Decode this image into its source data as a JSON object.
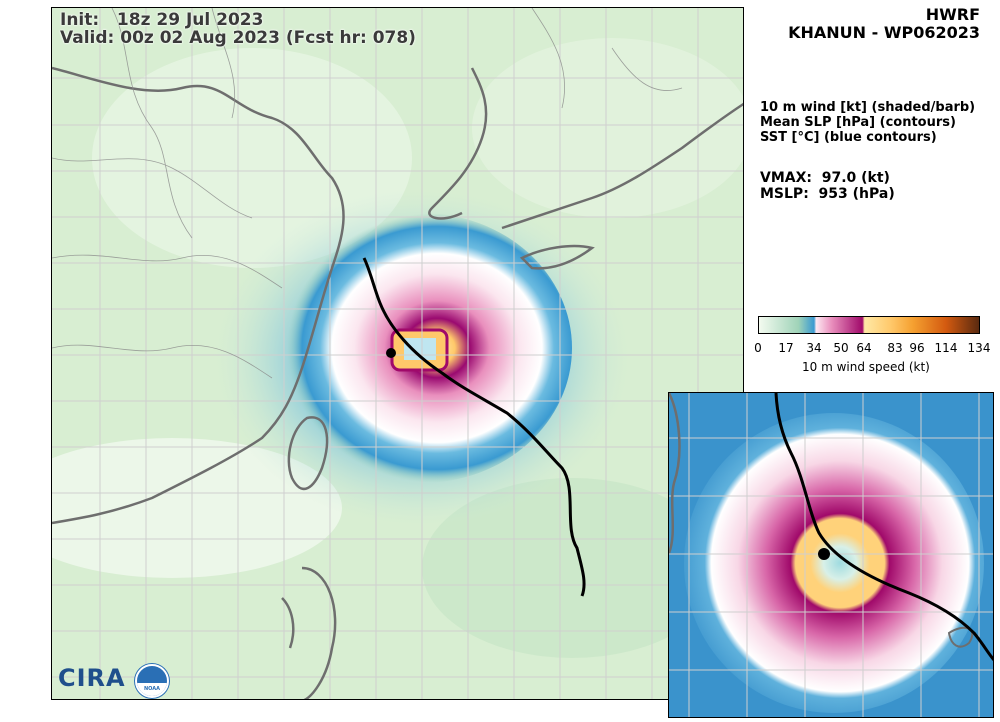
{
  "header": {
    "model": "HWRF",
    "storm": "KHANUN - WP062023",
    "init": "Init:   18z 29 Jul 2023",
    "valid": "Valid: 00z 02 Aug 2023 (Fcst hr: 078)"
  },
  "fields": [
    "10 m wind [kt] (shaded/barb)",
    "Mean SLP [hPa] (contours)",
    "SST [°C] (blue contours)"
  ],
  "intensity": {
    "vmax": "VMAX:  97.0 (kt)",
    "mslp": "MSLP:  953 (hPa)"
  },
  "colorbar": {
    "ticks": [
      "0",
      "17",
      "34",
      "50",
      "64",
      "83",
      "96",
      "114",
      "134"
    ],
    "label": "10 m wind speed (kt)",
    "colors": [
      "#e9f5e0",
      "#9fd3b8",
      "#3a9ad1",
      "#f3c7d9",
      "#a0096a",
      "#ffd27a",
      "#f5a030",
      "#d35a10",
      "#5a2a10"
    ]
  },
  "logos": {
    "cira": "CIRA",
    "noaa": "NOAA"
  }
}
